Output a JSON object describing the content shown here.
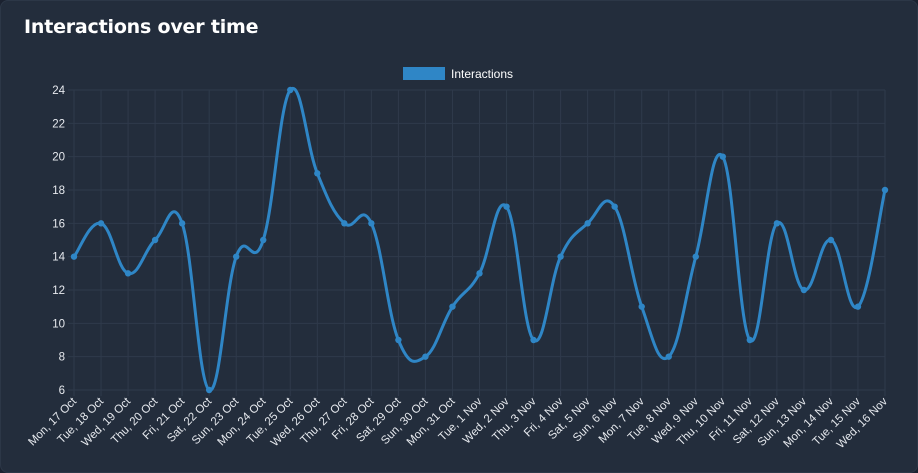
{
  "card": {
    "title": "Interactions over time"
  },
  "chart_data": {
    "type": "line",
    "title": "Interactions over time",
    "xlabel": "",
    "ylabel": "",
    "ylim": [
      6,
      24
    ],
    "yticks": [
      6,
      8,
      10,
      12,
      14,
      16,
      18,
      20,
      22,
      24
    ],
    "grid": true,
    "legend": "top-center",
    "categories": [
      "Mon, 17 Oct",
      "Tue, 18 Oct",
      "Wed, 19 Oct",
      "Thu, 20 Oct",
      "Fri, 21 Oct",
      "Sat, 22 Oct",
      "Sun, 23 Oct",
      "Mon, 24 Oct",
      "Tue, 25 Oct",
      "Wed, 26 Oct",
      "Thu, 27 Oct",
      "Fri, 28 Oct",
      "Sat, 29 Oct",
      "Sun, 30 Oct",
      "Mon, 31 Oct",
      "Tue, 1 Nov",
      "Wed, 2 Nov",
      "Thu, 3 Nov",
      "Fri, 4 Nov",
      "Sat, 5 Nov",
      "Sun, 6 Nov",
      "Mon, 7 Nov",
      "Tue, 8 Nov",
      "Wed, 9 Nov",
      "Thu, 10 Nov",
      "Fri, 11 Nov",
      "Sat, 12 Nov",
      "Sun, 13 Nov",
      "Mon, 14 Nov",
      "Tue, 15 Nov",
      "Wed, 16 Nov"
    ],
    "series": [
      {
        "name": "Interactions",
        "color": "#2f86c6",
        "values": [
          14,
          16,
          13,
          15,
          16,
          6,
          14,
          15,
          24,
          19,
          16,
          16,
          9,
          8,
          11,
          13,
          17,
          9,
          14,
          16,
          17,
          11,
          8,
          14,
          20,
          9,
          16,
          12,
          15,
          11,
          18
        ]
      }
    ]
  },
  "colors": {
    "background": "#232d3c",
    "grid": "#2f3a4b",
    "line": "#2f86c6"
  }
}
